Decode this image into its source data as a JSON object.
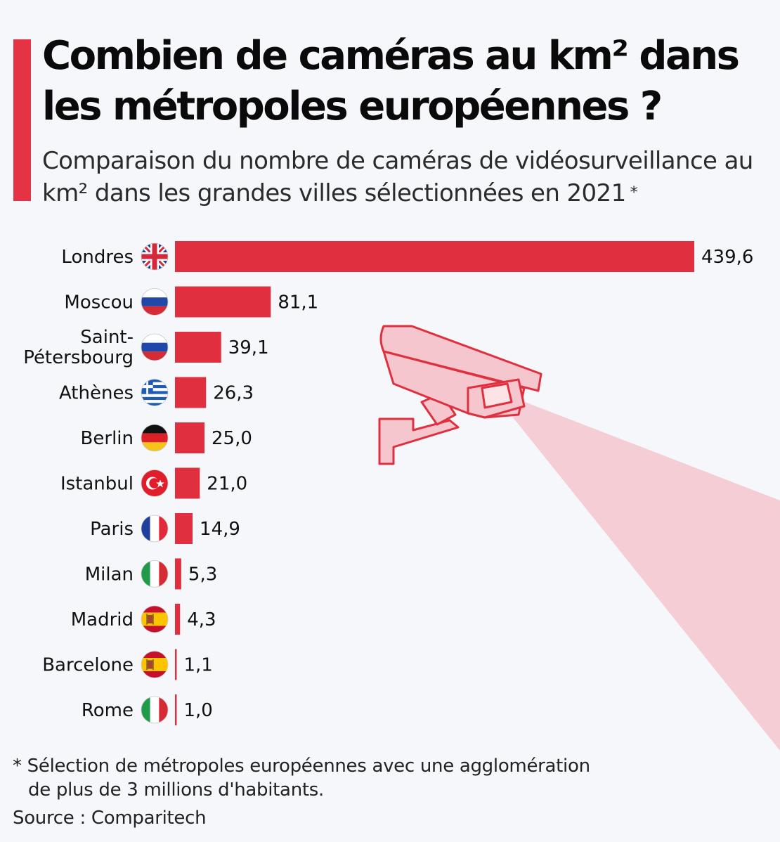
{
  "header": {
    "title": "Combien de caméras au km² dans les métropoles européennes ?",
    "subtitle": "Comparaison du nombre de caméras de vidéosurveillance au km² dans les grandes villes sélectionnées en 2021",
    "subtitle_marker": "*"
  },
  "colors": {
    "accent": "#e53345",
    "bar": "#e0303f",
    "camera_light": "#f5c6cd",
    "background": "#f5f7fa"
  },
  "chart_data": {
    "type": "bar",
    "orientation": "horizontal",
    "categories": [
      "Londres",
      "Moscou",
      "Saint-Pétersbourg",
      "Athènes",
      "Berlin",
      "Istanbul",
      "Paris",
      "Milan",
      "Madrid",
      "Barcelone",
      "Rome"
    ],
    "category_lines": [
      [
        "Londres"
      ],
      [
        "Moscou"
      ],
      [
        "Saint-",
        "Pétersbourg"
      ],
      [
        "Athènes"
      ],
      [
        "Berlin"
      ],
      [
        "Istanbul"
      ],
      [
        "Paris"
      ],
      [
        "Milan"
      ],
      [
        "Madrid"
      ],
      [
        "Barcelone"
      ],
      [
        "Rome"
      ]
    ],
    "flags": [
      "uk-flag-icon",
      "russia-flag-icon",
      "russia-flag-icon",
      "greece-flag-icon",
      "germany-flag-icon",
      "turkey-flag-icon",
      "france-flag-icon",
      "italy-flag-icon",
      "spain-flag-icon",
      "spain-flag-icon",
      "italy-flag-icon"
    ],
    "values": [
      439.6,
      81.1,
      39.1,
      26.3,
      25.0,
      21.0,
      14.9,
      5.3,
      4.3,
      1.1,
      1.0
    ],
    "value_labels": [
      "439,6",
      "81,1",
      "39,1",
      "26,3",
      "25,0",
      "21,0",
      "14,9",
      "5,3",
      "4,3",
      "1,1",
      "1,0"
    ],
    "xlim": [
      0,
      439.6
    ],
    "grid": false,
    "legend": "none"
  },
  "footer": {
    "footnote_line1": "* Sélection de métropoles européennes avec une agglomération",
    "footnote_line2": "de plus de 3 millions d'habitants.",
    "source": "Source : Comparitech"
  }
}
